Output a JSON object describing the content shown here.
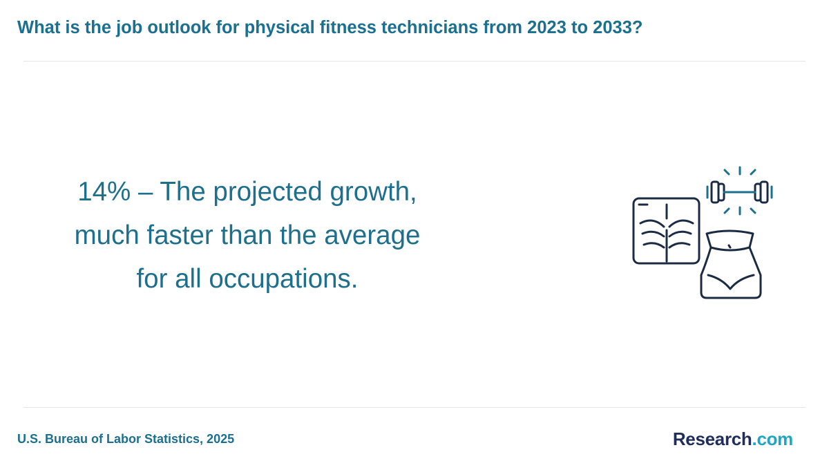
{
  "header": {
    "title": "What is the job outlook for physical fitness technicians from 2023 to 2033?"
  },
  "statement": {
    "lines": [
      "14% – The projected growth,",
      "much faster than the average",
      "for all occupations."
    ]
  },
  "footer": {
    "source": "U.S. Bureau of Labor Statistics, 2025",
    "logo": {
      "name": "Research",
      "suffix": ".com"
    }
  }
}
